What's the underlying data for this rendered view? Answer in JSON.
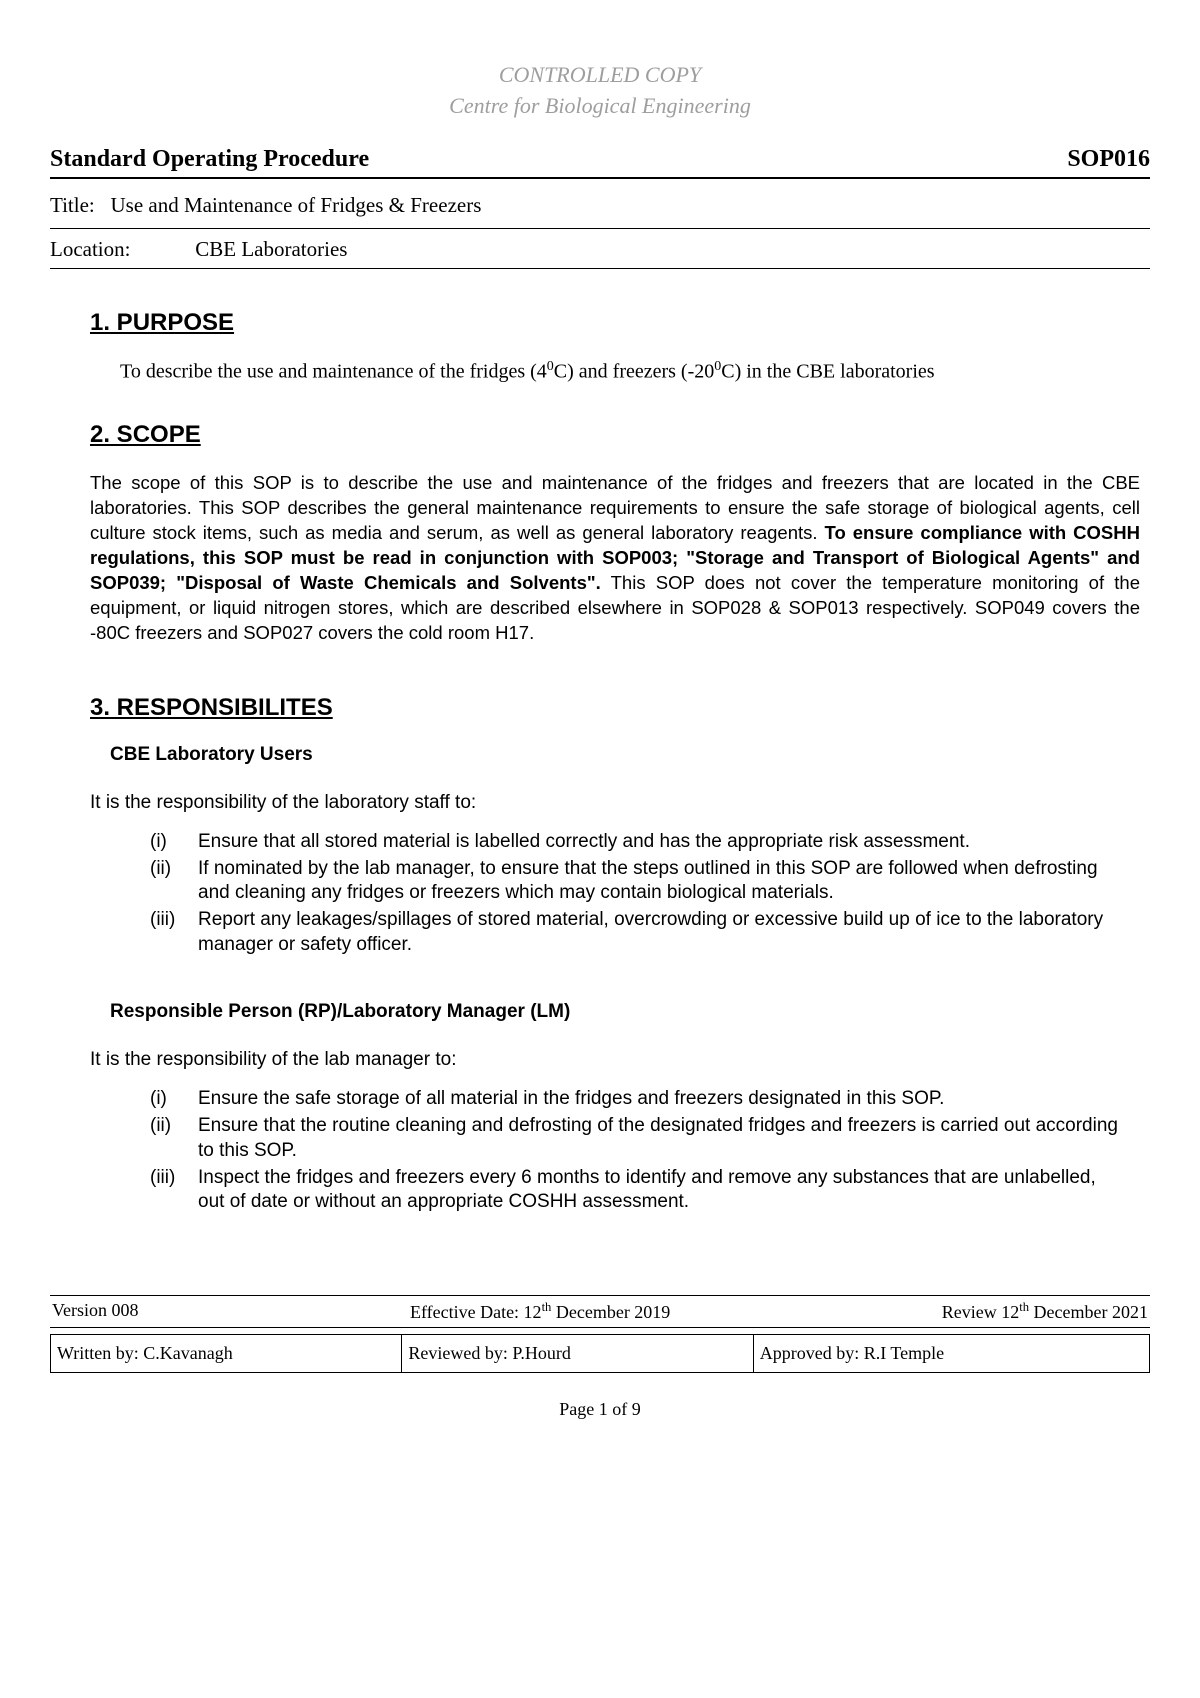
{
  "watermark": {
    "line1": "CONTROLLED COPY",
    "line2": "Centre for Biological Engineering"
  },
  "header": {
    "left": "Standard Operating Procedure",
    "right": "SOP016"
  },
  "title": {
    "label": "Title:",
    "value": "Use and Maintenance of Fridges & Freezers"
  },
  "location": {
    "label": "Location:",
    "value": "CBE Laboratories"
  },
  "sections": {
    "purpose": {
      "heading": "1. PURPOSE",
      "text_pre": "To describe the use and maintenance of the fridges (4",
      "sup1": "0",
      "text_mid": "C) and freezers (-20",
      "sup2": "0",
      "text_post": "C) in the CBE laboratories"
    },
    "scope": {
      "heading": "2. SCOPE",
      "text_pre": "The scope of this SOP is to describe the use and maintenance of the fridges and freezers that are located in the CBE laboratories. This SOP describes the general maintenance requirements to ensure the safe storage of biological agents, cell culture stock items, such as media and serum, as well as general laboratory reagents. ",
      "bold": "To ensure compliance with COSHH regulations, this SOP must be read in conjunction with SOP003; \"Storage and Transport of Biological Agents\" and SOP039; \"Disposal of Waste Chemicals and Solvents\".",
      "text_post": " This SOP does not cover the temperature monitoring of the equipment, or liquid nitrogen stores, which are described elsewhere in SOP028 & SOP013 respectively. SOP049 covers the -80C freezers and SOP027 covers the cold room H17."
    },
    "responsibilities": {
      "heading": "3. RESPONSIBILITES",
      "users": {
        "subheading": "CBE Laboratory Users",
        "intro": "It is the responsibility of the laboratory staff to:",
        "items": [
          {
            "num": "(i)",
            "text": "Ensure that all stored material is labelled correctly and has the appropriate risk assessment."
          },
          {
            "num": "(ii)",
            "text": "If nominated by the lab manager, to ensure that the steps outlined in this SOP are followed when defrosting and cleaning any fridges or freezers which may contain biological materials."
          },
          {
            "num": "(iii)",
            "text": "Report any leakages/spillages of stored material, overcrowding or excessive build up of ice to the laboratory manager or safety officer."
          }
        ]
      },
      "rp": {
        "subheading": "Responsible Person (RP)/Laboratory Manager (LM)",
        "intro": "It is the responsibility of the lab manager to:",
        "items": [
          {
            "num": "(i)",
            "text": "Ensure the safe storage of all material in the fridges and freezers designated in this SOP."
          },
          {
            "num": "(ii)",
            "text": "Ensure that the routine cleaning and defrosting of the designated fridges and freezers is carried out according to this SOP."
          },
          {
            "num": "(iii)",
            "text": "Inspect the fridges and freezers every 6 months to identify and remove any substances that are unlabelled, out of date or without an appropriate COSHH assessment."
          }
        ]
      }
    }
  },
  "footer": {
    "version": "Version 008",
    "effective_pre": "Effective Date: 12",
    "effective_sup": "th",
    "effective_post": " December 2019",
    "review_pre": "Review 12",
    "review_sup": "th",
    "review_post": " December 2021",
    "written": "Written by: C.Kavanagh",
    "reviewed": "Reviewed by: P.Hourd",
    "approved": "Approved by: R.I Temple",
    "page": "Page 1 of 9"
  }
}
